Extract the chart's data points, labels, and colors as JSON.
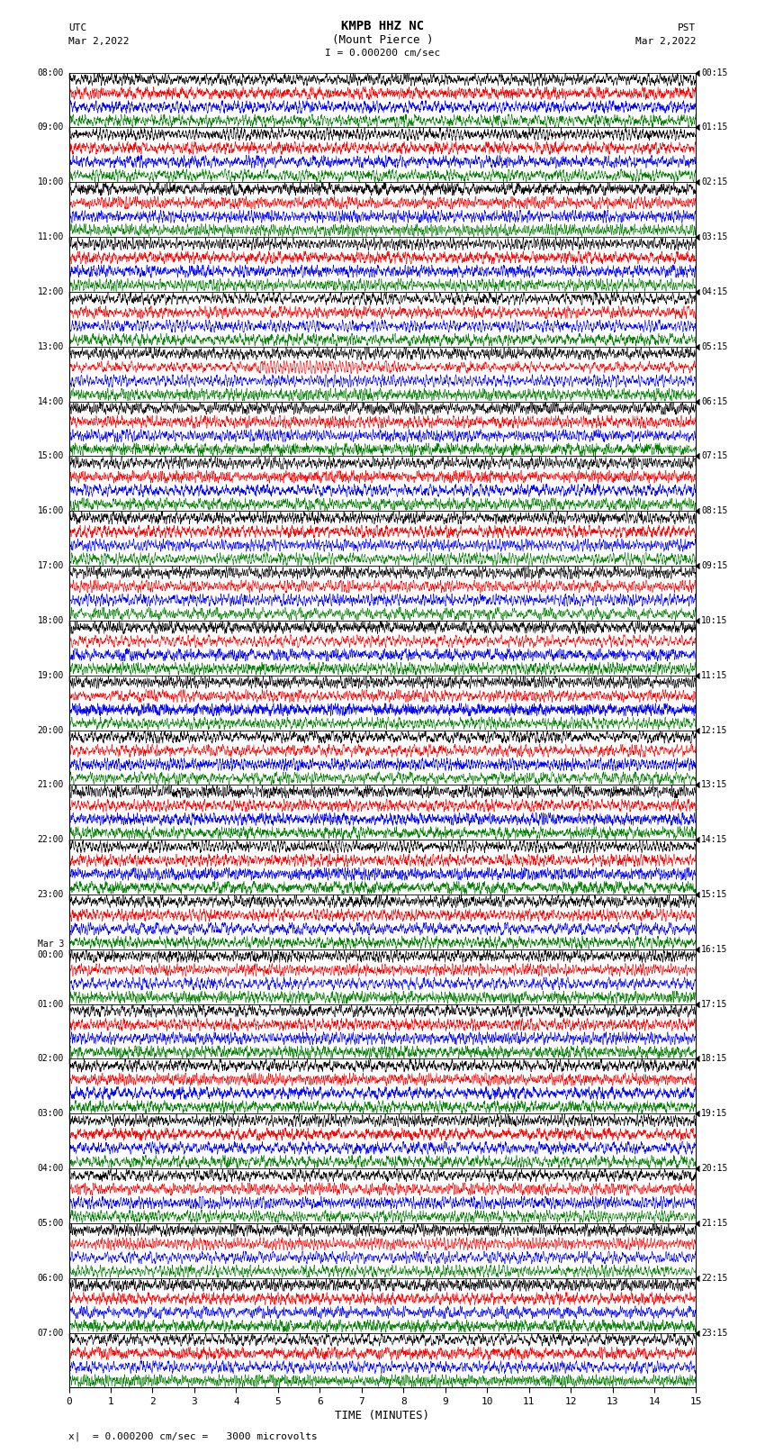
{
  "title_line1": "KMPB HHZ NC",
  "title_line2": "(Mount Pierce )",
  "scale_label": "I = 0.000200 cm/sec",
  "utc_label": "UTC",
  "utc_date": "Mar 2,2022",
  "pst_label": "PST",
  "pst_date": "Mar 2,2022",
  "xlabel": "TIME (MINUTES)",
  "bottom_label": "= 0.000200 cm/sec =   3000 microvolts",
  "xlim": [
    0,
    15
  ],
  "xticks": [
    0,
    1,
    2,
    3,
    4,
    5,
    6,
    7,
    8,
    9,
    10,
    11,
    12,
    13,
    14,
    15
  ],
  "trace_colors": [
    "black",
    "red",
    "blue",
    "green"
  ],
  "num_traces": 96,
  "fig_width": 8.5,
  "fig_height": 16.13,
  "bg_color": "white",
  "left_times": [
    "08:00",
    "09:00",
    "10:00",
    "11:00",
    "12:00",
    "13:00",
    "14:00",
    "15:00",
    "16:00",
    "17:00",
    "18:00",
    "19:00",
    "20:00",
    "21:00",
    "22:00",
    "23:00",
    "Mar 3\n00:00",
    "01:00",
    "02:00",
    "03:00",
    "04:00",
    "05:00",
    "06:00",
    "07:00"
  ],
  "right_times": [
    "00:15",
    "01:15",
    "02:15",
    "03:15",
    "04:15",
    "05:15",
    "06:15",
    "07:15",
    "08:15",
    "09:15",
    "10:15",
    "11:15",
    "12:15",
    "13:15",
    "14:15",
    "15:15",
    "16:15",
    "17:15",
    "18:15",
    "19:15",
    "20:15",
    "21:15",
    "22:15",
    "23:15"
  ]
}
